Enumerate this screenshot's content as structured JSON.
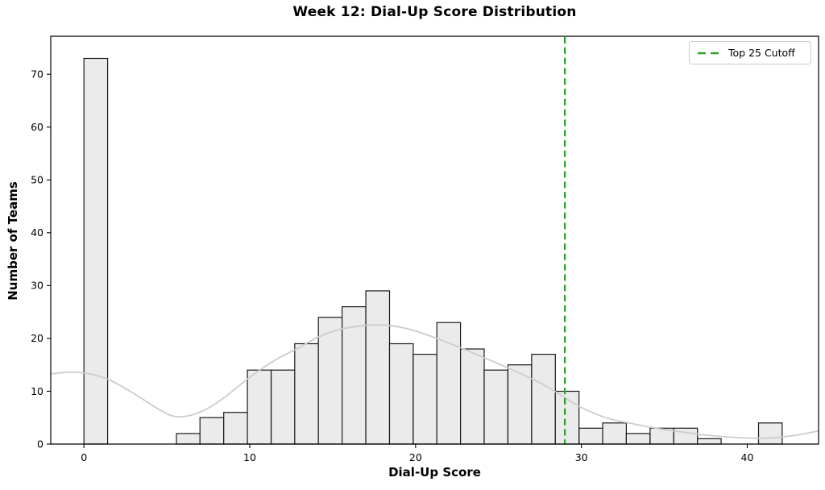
{
  "chart_data": {
    "type": "bar",
    "subtype": "histogram-with-kde",
    "title": "Week 12: Dial-Up Score Distribution",
    "xlabel": "Dial-Up Score",
    "ylabel": "Number of Teams",
    "xlim": [
      -2.0,
      44.3
    ],
    "ylim": [
      0,
      77.2
    ],
    "xticks": [
      0,
      10,
      20,
      30,
      40
    ],
    "yticks": [
      0,
      10,
      20,
      30,
      40,
      50,
      60,
      70
    ],
    "grid": false,
    "bin_width": 1.43,
    "bars": {
      "bin_lefts": [
        0.0,
        5.58,
        7.0,
        8.43,
        9.86,
        11.29,
        12.71,
        14.14,
        15.57,
        17.0,
        18.43,
        19.86,
        21.28,
        22.71,
        24.14,
        25.57,
        27.0,
        28.43,
        29.86,
        31.28,
        32.71,
        34.14,
        35.57,
        37.0,
        40.68
      ],
      "counts": [
        73,
        2,
        5,
        6,
        14,
        14,
        19,
        24,
        26,
        29,
        19,
        17,
        23,
        18,
        14,
        15,
        17,
        10,
        3,
        4,
        2,
        3,
        3,
        1,
        4
      ]
    },
    "kde_curve": [
      [
        -2.0,
        13.3
      ],
      [
        -0.8,
        13.6
      ],
      [
        0.3,
        13.3
      ],
      [
        1.5,
        12.2
      ],
      [
        3.0,
        9.6
      ],
      [
        4.5,
        6.6
      ],
      [
        5.5,
        5.2
      ],
      [
        6.5,
        5.5
      ],
      [
        7.5,
        6.8
      ],
      [
        8.5,
        8.9
      ],
      [
        9.5,
        11.4
      ],
      [
        10.6,
        14.0
      ],
      [
        11.7,
        16.2
      ],
      [
        13.0,
        18.3
      ],
      [
        14.1,
        20.2
      ],
      [
        15.3,
        21.6
      ],
      [
        16.5,
        22.3
      ],
      [
        17.6,
        22.55
      ],
      [
        18.8,
        22.3
      ],
      [
        20.0,
        21.4
      ],
      [
        21.2,
        20.1
      ],
      [
        22.5,
        18.5
      ],
      [
        23.8,
        16.8
      ],
      [
        25.0,
        15.2
      ],
      [
        26.3,
        13.4
      ],
      [
        27.5,
        11.6
      ],
      [
        28.6,
        9.6
      ],
      [
        29.6,
        7.6
      ],
      [
        30.7,
        5.9
      ],
      [
        31.8,
        4.7
      ],
      [
        33.0,
        3.9
      ],
      [
        34.5,
        3.0
      ],
      [
        36.0,
        2.3
      ],
      [
        37.5,
        1.7
      ],
      [
        39.0,
        1.3
      ],
      [
        40.5,
        1.1
      ],
      [
        41.8,
        1.25
      ],
      [
        43.0,
        1.7
      ],
      [
        44.3,
        2.5
      ]
    ],
    "cutoff_line": {
      "x": 29,
      "label": "Top 25 Cutoff",
      "style": "dashed"
    },
    "legend": {
      "position": "upper-right",
      "entries": [
        {
          "label": "Top 25 Cutoff",
          "style": "dashed"
        }
      ]
    },
    "colors": {
      "bar_fill": "#ebebeb",
      "bar_edge": "#1a1a1a",
      "kde_line": "#cccccc",
      "cutoff_green": "#2ca02c",
      "spine": "#000000",
      "text": "#000000",
      "background": "#ffffff"
    }
  }
}
